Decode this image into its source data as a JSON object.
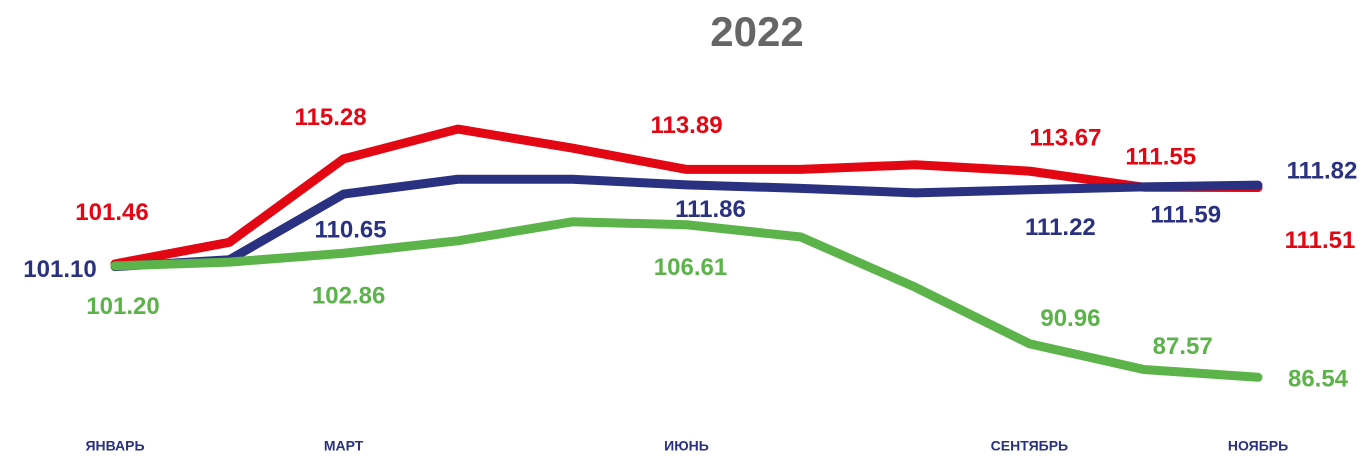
{
  "chart_data": {
    "type": "line",
    "title": "2022",
    "categories": [
      "ЯНВАРЬ",
      null,
      "МАРТ",
      null,
      null,
      "ИЮНЬ",
      null,
      null,
      "СЕНТЯБРЬ",
      null,
      "НОЯБРЬ"
    ],
    "ylim": [
      80,
      125
    ],
    "series": [
      {
        "name": "red",
        "color": "#e30613",
        "values": [
          101.46,
          104.3,
          115.28,
          119.2,
          116.7,
          113.89,
          113.9,
          114.5,
          113.67,
          111.55,
          111.51
        ],
        "value_labels": [
          "101.46",
          null,
          "115.28",
          null,
          null,
          "113.89",
          null,
          null,
          "113.67",
          "111.55",
          "111.51"
        ]
      },
      {
        "name": "blue",
        "color": "#2a3180",
        "values": [
          101.1,
          102.0,
          110.65,
          112.6,
          112.6,
          111.86,
          111.4,
          110.8,
          111.22,
          111.59,
          111.82
        ],
        "value_labels": [
          "101.10",
          null,
          "110.65",
          null,
          null,
          "111.86",
          null,
          null,
          "111.22",
          "111.59",
          "111.82"
        ]
      },
      {
        "name": "green",
        "color": "#5cb34a",
        "values": [
          101.2,
          101.7,
          102.86,
          104.5,
          107.0,
          106.61,
          105.0,
          98.4,
          90.96,
          87.57,
          86.54
        ],
        "value_labels": [
          "101.20",
          null,
          "102.86",
          null,
          null,
          "106.61",
          null,
          null,
          "90.96",
          "87.57",
          "86.54"
        ]
      }
    ]
  }
}
